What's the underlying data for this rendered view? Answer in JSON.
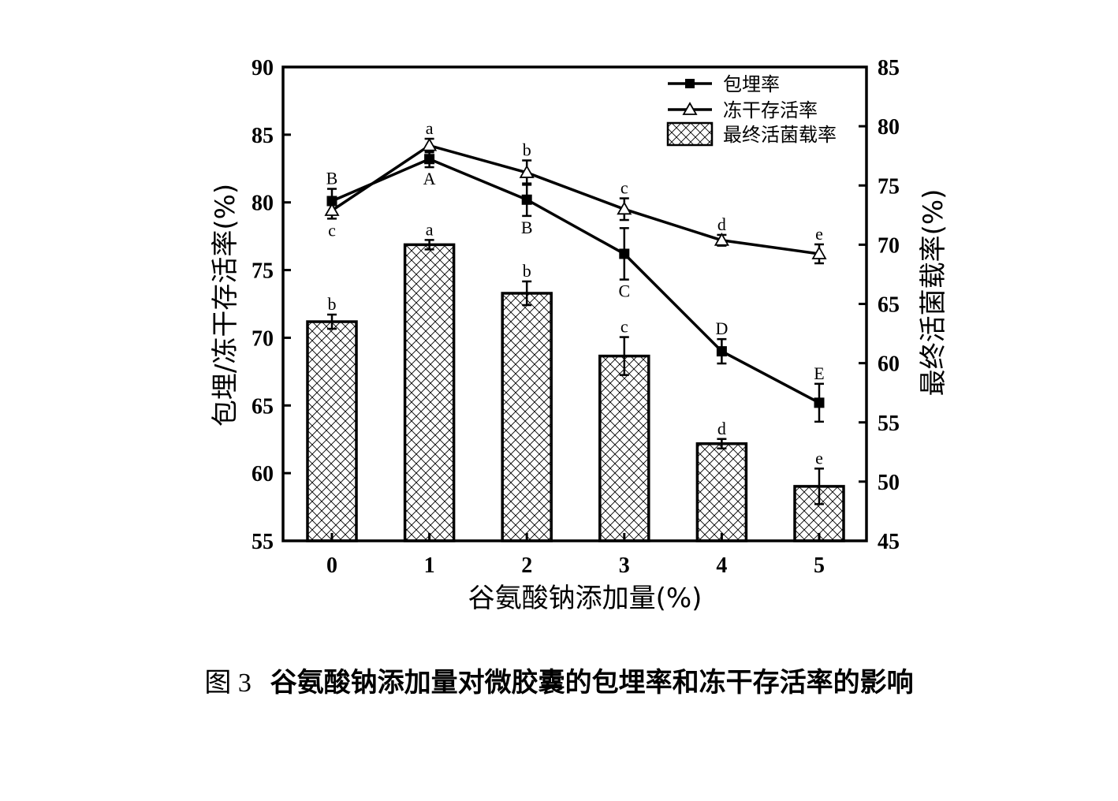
{
  "caption": {
    "label": "图 3",
    "text": "谷氨酸钠添加量对微胶囊的包埋率和冻干存活率的影响"
  },
  "chart_data": {
    "type": "bar+line",
    "categories": [
      "0",
      "1",
      "2",
      "3",
      "4",
      "5"
    ],
    "xlabel": "谷氨酸钠添加量(%)",
    "ylabel_left": "包埋/冻干存活率(%)",
    "ylabel_right": "最终活菌载率(%)",
    "ylim_left": [
      55,
      90
    ],
    "ylim_right": [
      45,
      85
    ],
    "yticks_left": [
      "55",
      "60",
      "65",
      "70",
      "75",
      "80",
      "85",
      "90"
    ],
    "yticks_right": [
      "45",
      "50",
      "55",
      "60",
      "65",
      "70",
      "75",
      "80",
      "85"
    ],
    "legend_position": "top-right",
    "series": [
      {
        "name": "包埋率",
        "type": "line",
        "marker": "filled-square",
        "axis": "left",
        "values": [
          80.1,
          83.2,
          80.2,
          76.2,
          69.0,
          65.2
        ],
        "errors": [
          0.9,
          0.6,
          1.2,
          1.9,
          0.9,
          1.4
        ],
        "labels": [
          "B",
          "A",
          "B",
          "C",
          "D",
          "E"
        ]
      },
      {
        "name": "冻干存活率",
        "type": "line",
        "marker": "open-triangle",
        "axis": "left",
        "values": [
          79.4,
          84.2,
          82.2,
          79.5,
          77.2,
          76.2
        ],
        "errors": [
          0.6,
          0.5,
          0.9,
          0.8,
          0.4,
          0.7
        ],
        "labels": [
          "c",
          "a",
          "b",
          "c",
          "d",
          "e"
        ]
      },
      {
        "name": "最终活菌载率",
        "type": "bar",
        "pattern": "crosshatch",
        "axis": "right",
        "values": [
          63.5,
          70.0,
          65.9,
          60.6,
          53.2,
          49.6
        ],
        "errors": [
          0.6,
          0.4,
          1.0,
          1.6,
          0.4,
          1.5
        ],
        "labels": [
          "b",
          "a",
          "b",
          "c",
          "d",
          "e"
        ]
      }
    ]
  }
}
